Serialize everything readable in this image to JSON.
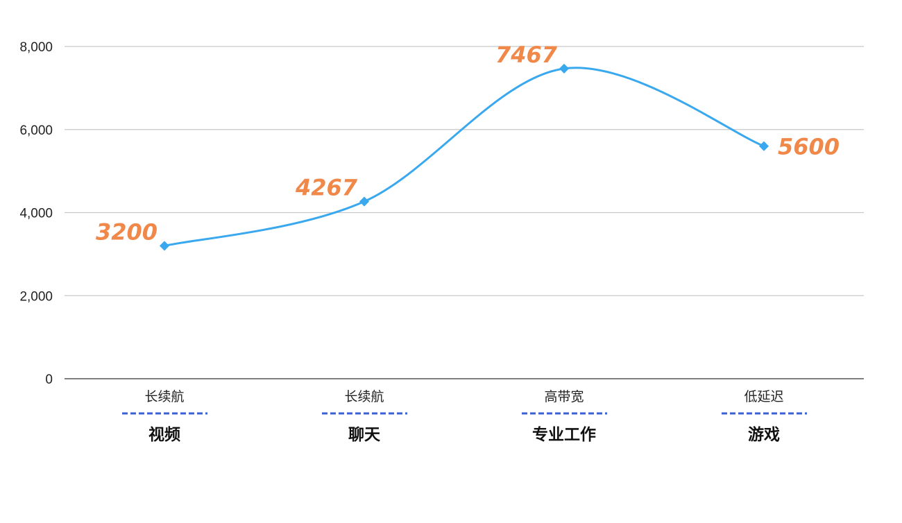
{
  "chart_data": {
    "type": "line",
    "smooth": true,
    "categories": [
      "视频",
      "聊天",
      "专业工作",
      "游戏"
    ],
    "category_sublabels": [
      "长续航",
      "长续航",
      "高带宽",
      "低延迟"
    ],
    "values": [
      3200,
      4267,
      7467,
      5600
    ],
    "data_labels": [
      "3200",
      "4267",
      "7467",
      "5600"
    ],
    "ylim": [
      0,
      8000
    ],
    "yticks": [
      0,
      2000,
      4000,
      6000,
      8000
    ],
    "ytick_labels": [
      "0",
      "2,000",
      "4,000",
      "6,000",
      "8,000"
    ],
    "grid": true,
    "legend": "none",
    "colors": {
      "line": "#3aa8ee",
      "data_label": "#f0884a",
      "separator": "#3a5fd6",
      "grid": "#c8c8c8"
    }
  }
}
